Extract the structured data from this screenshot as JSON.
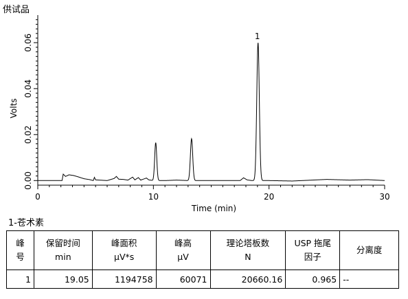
{
  "sample_title": "供试品",
  "chart_data": {
    "type": "line",
    "xlabel": "Time (min)",
    "ylabel": "Volts",
    "xlim": [
      0,
      30
    ],
    "ylim": [
      -0.002,
      0.072
    ],
    "x_ticks": [
      0,
      10,
      20,
      30
    ],
    "y_ticks": [
      0.0,
      0.02,
      0.04,
      0.06
    ],
    "y_tick_labels": [
      "0.00",
      "0.02",
      "0.04",
      "0.06"
    ],
    "grid": false,
    "line_color": "#000000",
    "baseline": 0.0,
    "baseline_points": [
      {
        "x": 0.0,
        "y": 0.0
      },
      {
        "x": 2.1,
        "y": 0.0
      },
      {
        "x": 2.2,
        "y": 0.0028
      },
      {
        "x": 2.4,
        "y": 0.0018
      },
      {
        "x": 2.7,
        "y": 0.0025
      },
      {
        "x": 3.1,
        "y": 0.0022
      },
      {
        "x": 3.5,
        "y": 0.0016
      },
      {
        "x": 4.0,
        "y": 0.0008
      },
      {
        "x": 4.5,
        "y": 0.0004
      },
      {
        "x": 4.8,
        "y": 0.0
      },
      {
        "x": 4.9,
        "y": 0.0014
      },
      {
        "x": 5.0,
        "y": 0.0003
      },
      {
        "x": 6.0,
        "y": 0.0
      },
      {
        "x": 6.6,
        "y": 0.0009
      },
      {
        "x": 6.8,
        "y": 0.0018
      },
      {
        "x": 7.0,
        "y": 0.0006
      },
      {
        "x": 7.4,
        "y": 0.0005
      },
      {
        "x": 7.8,
        "y": 0.0002
      },
      {
        "x": 8.2,
        "y": 0.0015
      },
      {
        "x": 8.4,
        "y": 0.0003
      },
      {
        "x": 8.7,
        "y": 0.0013
      },
      {
        "x": 8.9,
        "y": 0.0002
      },
      {
        "x": 9.4,
        "y": 0.0011
      },
      {
        "x": 9.6,
        "y": 0.0003
      },
      {
        "x": 10.0,
        "y": 0.0
      },
      {
        "x": 11.0,
        "y": 0.0
      },
      {
        "x": 12.0,
        "y": 0.0002
      },
      {
        "x": 13.0,
        "y": 0.0
      },
      {
        "x": 14.0,
        "y": 0.0
      },
      {
        "x": 15.5,
        "y": 0.0
      },
      {
        "x": 17.5,
        "y": 0.0
      },
      {
        "x": 17.8,
        "y": 0.0012
      },
      {
        "x": 18.1,
        "y": 0.0003
      },
      {
        "x": 18.5,
        "y": 0.0
      },
      {
        "x": 20.0,
        "y": 0.0
      },
      {
        "x": 22.0,
        "y": -0.0002
      },
      {
        "x": 25.0,
        "y": 0.0005
      },
      {
        "x": 27.0,
        "y": 0.0002
      },
      {
        "x": 28.5,
        "y": 0.0004
      },
      {
        "x": 30.0,
        "y": 0.0
      }
    ],
    "peaks": [
      {
        "rt": 10.2,
        "height": 0.0165,
        "width": 0.09,
        "label": ""
      },
      {
        "rt": 13.3,
        "height": 0.0182,
        "width": 0.1,
        "label": ""
      },
      {
        "rt": 19.05,
        "height": 0.06,
        "width": 0.11,
        "label": "1"
      }
    ]
  },
  "compound_title": "1-苍术素",
  "table": {
    "headers": [
      [
        "峰",
        "号"
      ],
      [
        "保留时间",
        "min"
      ],
      [
        "峰面积",
        "μV*s"
      ],
      [
        "峰高",
        "μV"
      ],
      [
        "理论塔板数",
        "N"
      ],
      [
        "USP 拖尾",
        "因子"
      ],
      [
        "分离度"
      ]
    ],
    "rows": [
      [
        "1",
        "19.05",
        "1194758",
        "60071",
        "20660.16",
        "0.965",
        "--"
      ]
    ]
  }
}
